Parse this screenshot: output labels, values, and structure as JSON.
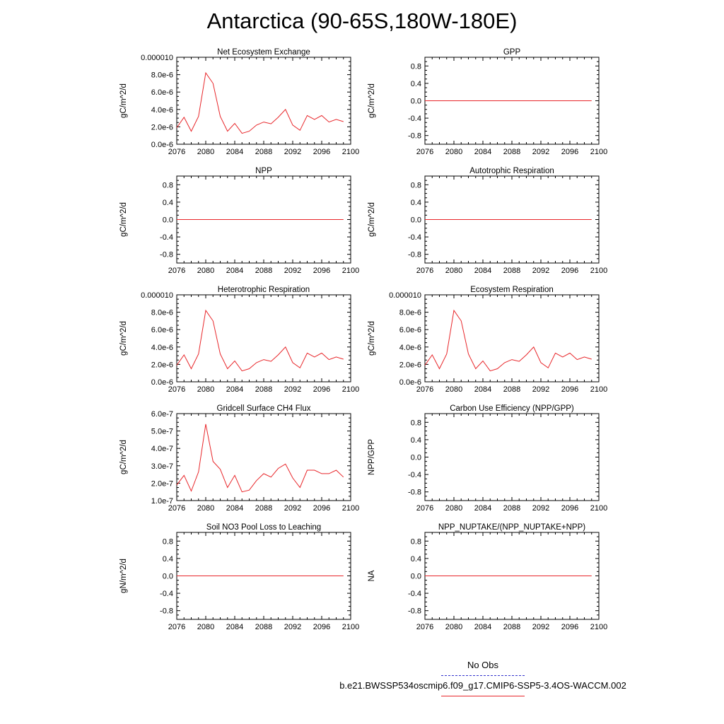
{
  "page": {
    "title": "Antarctica (90-65S,180W-180E)"
  },
  "legend": {
    "obs_label": "No Obs",
    "model_label": "b.e21.BWSSP534oscmip6.f09_g17.CMIP6-SSP5-3.4OS-WACCM.002",
    "obs_color": "#3333cc",
    "model_color": "#e8262a"
  },
  "chart_data": [
    {
      "type": "line",
      "title": "Net Ecosystem Exchange",
      "ylabel": "gC/m^2/d",
      "xlim": [
        2076,
        2100
      ],
      "ylim": [
        0,
        1e-05
      ],
      "x_ticks": [
        "2076",
        "2080",
        "2084",
        "2088",
        "2092",
        "2096",
        "2100"
      ],
      "y_ticks": [
        {
          "value": 0,
          "label": "0.0e-6"
        },
        {
          "value": 2e-06,
          "label": "2.0e-6"
        },
        {
          "value": 4e-06,
          "label": "4.0e-6"
        },
        {
          "value": 6e-06,
          "label": "6.0e-6"
        },
        {
          "value": 8e-06,
          "label": "8.0e-6"
        },
        {
          "value": 1e-05,
          "label": "0.000010"
        }
      ],
      "series": [
        {
          "x": [
            2076,
            2077,
            2078,
            2079,
            2080,
            2081,
            2082,
            2083,
            2084,
            2085,
            2086,
            2087,
            2088,
            2089,
            2090,
            2091,
            2092,
            2093,
            2094,
            2095,
            2096,
            2097,
            2098,
            2099
          ],
          "y": [
            1.9e-06,
            3.1e-06,
            1.5e-06,
            3.2e-06,
            8.2e-06,
            7e-06,
            3.2e-06,
            1.5e-06,
            2.4e-06,
            1.25e-06,
            1.5e-06,
            2.2e-06,
            2.55e-06,
            2.35e-06,
            3.1e-06,
            4e-06,
            2.2e-06,
            1.6e-06,
            3.3e-06,
            2.85e-06,
            3.3e-06,
            2.55e-06,
            2.85e-06,
            2.6e-06
          ]
        }
      ]
    },
    {
      "type": "line",
      "title": "GPP",
      "ylabel": "gC/m^2/d",
      "xlim": [
        2076,
        2100
      ],
      "ylim": [
        -1,
        1
      ],
      "x_ticks": [
        "2076",
        "2080",
        "2084",
        "2088",
        "2092",
        "2096",
        "2100"
      ],
      "y_ticks": [
        {
          "value": -0.8,
          "label": "-0.8"
        },
        {
          "value": -0.4,
          "label": "-0.4"
        },
        {
          "value": 0,
          "label": "0.0"
        },
        {
          "value": 0.4,
          "label": "0.4"
        },
        {
          "value": 0.8,
          "label": "0.8"
        }
      ],
      "series": [
        {
          "x": [
            2076,
            2099
          ],
          "y": [
            0,
            0
          ]
        }
      ]
    },
    {
      "type": "line",
      "title": "NPP",
      "ylabel": "gC/m^2/d",
      "xlim": [
        2076,
        2100
      ],
      "ylim": [
        -1,
        1
      ],
      "x_ticks": [
        "2076",
        "2080",
        "2084",
        "2088",
        "2092",
        "2096",
        "2100"
      ],
      "y_ticks": [
        {
          "value": -0.8,
          "label": "-0.8"
        },
        {
          "value": -0.4,
          "label": "-0.4"
        },
        {
          "value": 0,
          "label": "0.0"
        },
        {
          "value": 0.4,
          "label": "0.4"
        },
        {
          "value": 0.8,
          "label": "0.8"
        }
      ],
      "series": [
        {
          "x": [
            2076,
            2099
          ],
          "y": [
            0,
            0
          ]
        }
      ]
    },
    {
      "type": "line",
      "title": "Autotrophic Respiration",
      "ylabel": "gC/m^2/d",
      "xlim": [
        2076,
        2100
      ],
      "ylim": [
        -1,
        1
      ],
      "x_ticks": [
        "2076",
        "2080",
        "2084",
        "2088",
        "2092",
        "2096",
        "2100"
      ],
      "y_ticks": [
        {
          "value": -0.8,
          "label": "-0.8"
        },
        {
          "value": -0.4,
          "label": "-0.4"
        },
        {
          "value": 0,
          "label": "0.0"
        },
        {
          "value": 0.4,
          "label": "0.4"
        },
        {
          "value": 0.8,
          "label": "0.8"
        }
      ],
      "series": [
        {
          "x": [
            2076,
            2099
          ],
          "y": [
            0,
            0
          ]
        }
      ]
    },
    {
      "type": "line",
      "title": "Heterotrophic Respiration",
      "ylabel": "gC/m^2/d",
      "xlim": [
        2076,
        2100
      ],
      "ylim": [
        0,
        1e-05
      ],
      "x_ticks": [
        "2076",
        "2080",
        "2084",
        "2088",
        "2092",
        "2096",
        "2100"
      ],
      "y_ticks": [
        {
          "value": 0,
          "label": "0.0e-6"
        },
        {
          "value": 2e-06,
          "label": "2.0e-6"
        },
        {
          "value": 4e-06,
          "label": "4.0e-6"
        },
        {
          "value": 6e-06,
          "label": "6.0e-6"
        },
        {
          "value": 8e-06,
          "label": "8.0e-6"
        },
        {
          "value": 1e-05,
          "label": "0.000010"
        }
      ],
      "series": [
        {
          "x": [
            2076,
            2077,
            2078,
            2079,
            2080,
            2081,
            2082,
            2083,
            2084,
            2085,
            2086,
            2087,
            2088,
            2089,
            2090,
            2091,
            2092,
            2093,
            2094,
            2095,
            2096,
            2097,
            2098,
            2099
          ],
          "y": [
            1.9e-06,
            3.1e-06,
            1.5e-06,
            3.2e-06,
            8.2e-06,
            7e-06,
            3.2e-06,
            1.5e-06,
            2.4e-06,
            1.25e-06,
            1.5e-06,
            2.2e-06,
            2.55e-06,
            2.35e-06,
            3.1e-06,
            4e-06,
            2.2e-06,
            1.6e-06,
            3.3e-06,
            2.85e-06,
            3.3e-06,
            2.55e-06,
            2.85e-06,
            2.6e-06
          ]
        }
      ]
    },
    {
      "type": "line",
      "title": "Ecosystem Respiration",
      "ylabel": "gC/m^2/d",
      "xlim": [
        2076,
        2100
      ],
      "ylim": [
        0,
        1e-05
      ],
      "x_ticks": [
        "2076",
        "2080",
        "2084",
        "2088",
        "2092",
        "2096",
        "2100"
      ],
      "y_ticks": [
        {
          "value": 0,
          "label": "0.0e-6"
        },
        {
          "value": 2e-06,
          "label": "2.0e-6"
        },
        {
          "value": 4e-06,
          "label": "4.0e-6"
        },
        {
          "value": 6e-06,
          "label": "6.0e-6"
        },
        {
          "value": 8e-06,
          "label": "8.0e-6"
        },
        {
          "value": 1e-05,
          "label": "0.000010"
        }
      ],
      "series": [
        {
          "x": [
            2076,
            2077,
            2078,
            2079,
            2080,
            2081,
            2082,
            2083,
            2084,
            2085,
            2086,
            2087,
            2088,
            2089,
            2090,
            2091,
            2092,
            2093,
            2094,
            2095,
            2096,
            2097,
            2098,
            2099
          ],
          "y": [
            1.9e-06,
            3.1e-06,
            1.5e-06,
            3.2e-06,
            8.2e-06,
            7e-06,
            3.2e-06,
            1.5e-06,
            2.4e-06,
            1.25e-06,
            1.5e-06,
            2.2e-06,
            2.55e-06,
            2.35e-06,
            3.1e-06,
            4e-06,
            2.2e-06,
            1.6e-06,
            3.3e-06,
            2.85e-06,
            3.3e-06,
            2.55e-06,
            2.85e-06,
            2.6e-06
          ]
        }
      ]
    },
    {
      "type": "line",
      "title": "Gridcell Surface CH4 Flux",
      "ylabel": "gC/m^2/d",
      "xlim": [
        2076,
        2100
      ],
      "ylim": [
        1e-07,
        6e-07
      ],
      "x_ticks": [
        "2076",
        "2080",
        "2084",
        "2088",
        "2092",
        "2096",
        "2100"
      ],
      "y_ticks": [
        {
          "value": 1e-07,
          "label": "1.0e-7"
        },
        {
          "value": 2e-07,
          "label": "2.0e-7"
        },
        {
          "value": 3e-07,
          "label": "3.0e-7"
        },
        {
          "value": 4e-07,
          "label": "4.0e-7"
        },
        {
          "value": 5e-07,
          "label": "5.0e-7"
        },
        {
          "value": 6e-07,
          "label": "6.0e-7"
        }
      ],
      "series": [
        {
          "x": [
            2076,
            2077,
            2078,
            2079,
            2080,
            2081,
            2082,
            2083,
            2084,
            2085,
            2086,
            2087,
            2088,
            2089,
            2090,
            2091,
            2092,
            2093,
            2094,
            2095,
            2096,
            2097,
            2098,
            2099
          ],
          "y": [
            1.9e-07,
            2.45e-07,
            1.55e-07,
            2.65e-07,
            5.4e-07,
            3.25e-07,
            2.8e-07,
            1.75e-07,
            2.45e-07,
            1.5e-07,
            1.6e-07,
            2.15e-07,
            2.55e-07,
            2.35e-07,
            2.85e-07,
            3.1e-07,
            2.3e-07,
            1.75e-07,
            2.75e-07,
            2.75e-07,
            2.55e-07,
            2.55e-07,
            2.75e-07,
            2.35e-07
          ]
        }
      ]
    },
    {
      "type": "line",
      "title": "Carbon Use Efficiency (NPP/GPP)",
      "ylabel": "NPP/GPP",
      "xlim": [
        2076,
        2100
      ],
      "ylim": [
        -1,
        1
      ],
      "x_ticks": [
        "2076",
        "2080",
        "2084",
        "2088",
        "2092",
        "2096",
        "2100"
      ],
      "y_ticks": [
        {
          "value": -0.8,
          "label": "-0.8"
        },
        {
          "value": -0.4,
          "label": "-0.4"
        },
        {
          "value": 0,
          "label": "0.0"
        },
        {
          "value": 0.4,
          "label": "0.4"
        },
        {
          "value": 0.8,
          "label": "0.8"
        }
      ],
      "series": []
    },
    {
      "type": "line",
      "title": "Soil NO3 Pool Loss to Leaching",
      "ylabel": "gN/m^2/d",
      "xlim": [
        2076,
        2100
      ],
      "ylim": [
        -1,
        1
      ],
      "x_ticks": [
        "2076",
        "2080",
        "2084",
        "2088",
        "2092",
        "2096",
        "2100"
      ],
      "y_ticks": [
        {
          "value": -0.8,
          "label": "-0.8"
        },
        {
          "value": -0.4,
          "label": "-0.4"
        },
        {
          "value": 0,
          "label": "0.0"
        },
        {
          "value": 0.4,
          "label": "0.4"
        },
        {
          "value": 0.8,
          "label": "0.8"
        }
      ],
      "series": [
        {
          "x": [
            2076,
            2099
          ],
          "y": [
            0,
            0
          ]
        }
      ]
    },
    {
      "type": "line",
      "title": "NPP_NUPTAKE/(NPP_NUPTAKE+NPP)",
      "ylabel": "NA",
      "xlim": [
        2076,
        2100
      ],
      "ylim": [
        -1,
        1
      ],
      "x_ticks": [
        "2076",
        "2080",
        "2084",
        "2088",
        "2092",
        "2096",
        "2100"
      ],
      "y_ticks": [
        {
          "value": -0.8,
          "label": "-0.8"
        },
        {
          "value": -0.4,
          "label": "-0.4"
        },
        {
          "value": 0,
          "label": "0.0"
        },
        {
          "value": 0.4,
          "label": "0.4"
        },
        {
          "value": 0.8,
          "label": "0.8"
        }
      ],
      "series": [
        {
          "x": [
            2076,
            2099
          ],
          "y": [
            0,
            0
          ]
        }
      ]
    }
  ]
}
